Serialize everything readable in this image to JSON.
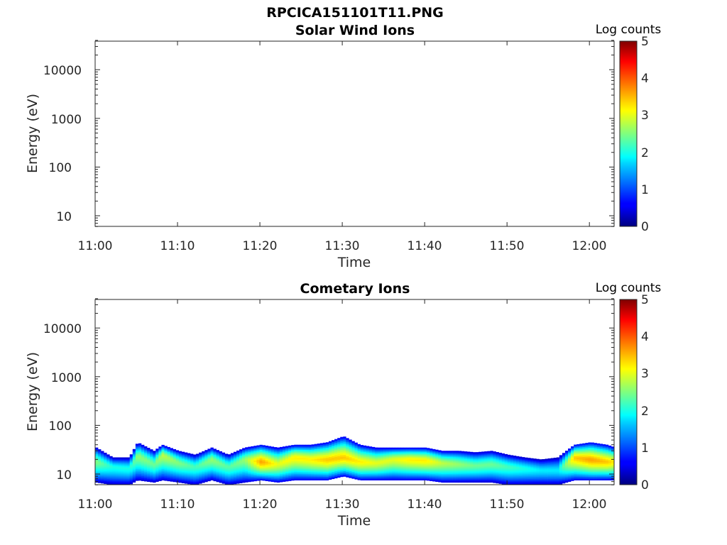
{
  "figure": {
    "title": "RPCICA151101T11.PNG"
  },
  "colorbar": {
    "label": "Log counts",
    "ticks": [
      "0",
      "1",
      "2",
      "3",
      "4",
      "5"
    ],
    "range": [
      0,
      5
    ]
  },
  "chart_data": [
    {
      "type": "heatmap",
      "title": "Solar Wind Ions",
      "xlabel": "Time",
      "ylabel": "Energy (eV)",
      "x_ticks": [
        "11:00",
        "11:10",
        "11:20",
        "11:30",
        "11:40",
        "11:50",
        "12:00"
      ],
      "y_ticks": [
        "10",
        "100",
        "1000",
        "10000"
      ],
      "xlim": [
        "11:00",
        "12:03"
      ],
      "ylim": [
        6,
        45000
      ],
      "y_scale": "log",
      "colorbar": "Log counts",
      "band": []
    },
    {
      "type": "heatmap",
      "title": "Cometary Ions",
      "xlabel": "Time",
      "ylabel": "Energy (eV)",
      "x_ticks": [
        "11:00",
        "11:10",
        "11:20",
        "11:30",
        "11:40",
        "11:50",
        "12:00"
      ],
      "y_ticks": [
        "10",
        "100",
        "1000",
        "10000"
      ],
      "xlim": [
        "11:00",
        "12:03"
      ],
      "ylim": [
        6,
        45000
      ],
      "y_scale": "log",
      "colorbar": "Log counts",
      "band": [
        {
          "time": "11:00",
          "energy_low_eV": 9,
          "energy_high_eV": 35,
          "peak_energy_eV": 18,
          "peak_log_counts": 2.5
        },
        {
          "time": "11:02",
          "energy_low_eV": 8,
          "energy_high_eV": 22,
          "peak_energy_eV": 14,
          "peak_log_counts": 2.0
        },
        {
          "time": "11:04",
          "energy_low_eV": 8,
          "energy_high_eV": 22,
          "peak_energy_eV": 13,
          "peak_log_counts": 2.0
        },
        {
          "time": "11:05",
          "energy_low_eV": 10,
          "energy_high_eV": 45,
          "peak_energy_eV": 24,
          "peak_log_counts": 2.6
        },
        {
          "time": "11:07",
          "energy_low_eV": 9,
          "energy_high_eV": 30,
          "peak_energy_eV": 16,
          "peak_log_counts": 2.4
        },
        {
          "time": "11:08",
          "energy_low_eV": 10,
          "energy_high_eV": 40,
          "peak_energy_eV": 25,
          "peak_log_counts": 2.8
        },
        {
          "time": "11:10",
          "energy_low_eV": 9,
          "energy_high_eV": 30,
          "peak_energy_eV": 17,
          "peak_log_counts": 2.5
        },
        {
          "time": "11:12",
          "energy_low_eV": 8,
          "energy_high_eV": 25,
          "peak_energy_eV": 14,
          "peak_log_counts": 2.2
        },
        {
          "time": "11:14",
          "energy_low_eV": 10,
          "energy_high_eV": 35,
          "peak_energy_eV": 20,
          "peak_log_counts": 2.6
        },
        {
          "time": "11:16",
          "energy_low_eV": 8,
          "energy_high_eV": 25,
          "peak_energy_eV": 14,
          "peak_log_counts": 2.3
        },
        {
          "time": "11:18",
          "energy_low_eV": 9,
          "energy_high_eV": 35,
          "peak_energy_eV": 20,
          "peak_log_counts": 2.6
        },
        {
          "time": "11:20",
          "energy_low_eV": 10,
          "energy_high_eV": 40,
          "peak_energy_eV": 18,
          "peak_log_counts": 3.6
        },
        {
          "time": "11:22",
          "energy_low_eV": 9,
          "energy_high_eV": 35,
          "peak_energy_eV": 16,
          "peak_log_counts": 3.0
        },
        {
          "time": "11:24",
          "energy_low_eV": 10,
          "energy_high_eV": 40,
          "peak_energy_eV": 22,
          "peak_log_counts": 3.2
        },
        {
          "time": "11:26",
          "energy_low_eV": 10,
          "energy_high_eV": 40,
          "peak_energy_eV": 20,
          "peak_log_counts": 3.2
        },
        {
          "time": "11:28",
          "energy_low_eV": 10,
          "energy_high_eV": 45,
          "peak_energy_eV": 20,
          "peak_log_counts": 3.4
        },
        {
          "time": "11:30",
          "energy_low_eV": 12,
          "energy_high_eV": 60,
          "peak_energy_eV": 22,
          "peak_log_counts": 3.4
        },
        {
          "time": "11:32",
          "energy_low_eV": 10,
          "energy_high_eV": 40,
          "peak_energy_eV": 18,
          "peak_log_counts": 3.2
        },
        {
          "time": "11:34",
          "energy_low_eV": 10,
          "energy_high_eV": 35,
          "peak_energy_eV": 17,
          "peak_log_counts": 3.0
        },
        {
          "time": "11:36",
          "energy_low_eV": 10,
          "energy_high_eV": 35,
          "peak_energy_eV": 20,
          "peak_log_counts": 3.0
        },
        {
          "time": "11:38",
          "energy_low_eV": 10,
          "energy_high_eV": 35,
          "peak_energy_eV": 20,
          "peak_log_counts": 3.2
        },
        {
          "time": "11:40",
          "energy_low_eV": 10,
          "energy_high_eV": 35,
          "peak_energy_eV": 19,
          "peak_log_counts": 3.2
        },
        {
          "time": "11:42",
          "energy_low_eV": 9,
          "energy_high_eV": 30,
          "peak_energy_eV": 17,
          "peak_log_counts": 2.8
        },
        {
          "time": "11:44",
          "energy_low_eV": 9,
          "energy_high_eV": 30,
          "peak_energy_eV": 16,
          "peak_log_counts": 2.6
        },
        {
          "time": "11:46",
          "energy_low_eV": 9,
          "energy_high_eV": 28,
          "peak_energy_eV": 15,
          "peak_log_counts": 2.4
        },
        {
          "time": "11:48",
          "energy_low_eV": 9,
          "energy_high_eV": 30,
          "peak_energy_eV": 16,
          "peak_log_counts": 2.4
        },
        {
          "time": "11:50",
          "energy_low_eV": 8,
          "energy_high_eV": 25,
          "peak_energy_eV": 14,
          "peak_log_counts": 2.2
        },
        {
          "time": "11:52",
          "energy_low_eV": 8,
          "energy_high_eV": 22,
          "peak_energy_eV": 13,
          "peak_log_counts": 2.0
        },
        {
          "time": "11:54",
          "energy_low_eV": 8,
          "energy_high_eV": 20,
          "peak_energy_eV": 12,
          "peak_log_counts": 1.8
        },
        {
          "time": "11:56",
          "energy_low_eV": 8,
          "energy_high_eV": 22,
          "peak_energy_eV": 12,
          "peak_log_counts": 1.8
        },
        {
          "time": "11:58",
          "energy_low_eV": 10,
          "energy_high_eV": 40,
          "peak_energy_eV": 22,
          "peak_log_counts": 3.4
        },
        {
          "time": "12:00",
          "energy_low_eV": 10,
          "energy_high_eV": 45,
          "peak_energy_eV": 20,
          "peak_log_counts": 3.6
        },
        {
          "time": "12:02",
          "energy_low_eV": 10,
          "energy_high_eV": 40,
          "peak_energy_eV": 18,
          "peak_log_counts": 3.4
        },
        {
          "time": "12:03",
          "energy_low_eV": 10,
          "energy_high_eV": 35,
          "peak_energy_eV": 18,
          "peak_log_counts": 3.2
        }
      ]
    }
  ]
}
